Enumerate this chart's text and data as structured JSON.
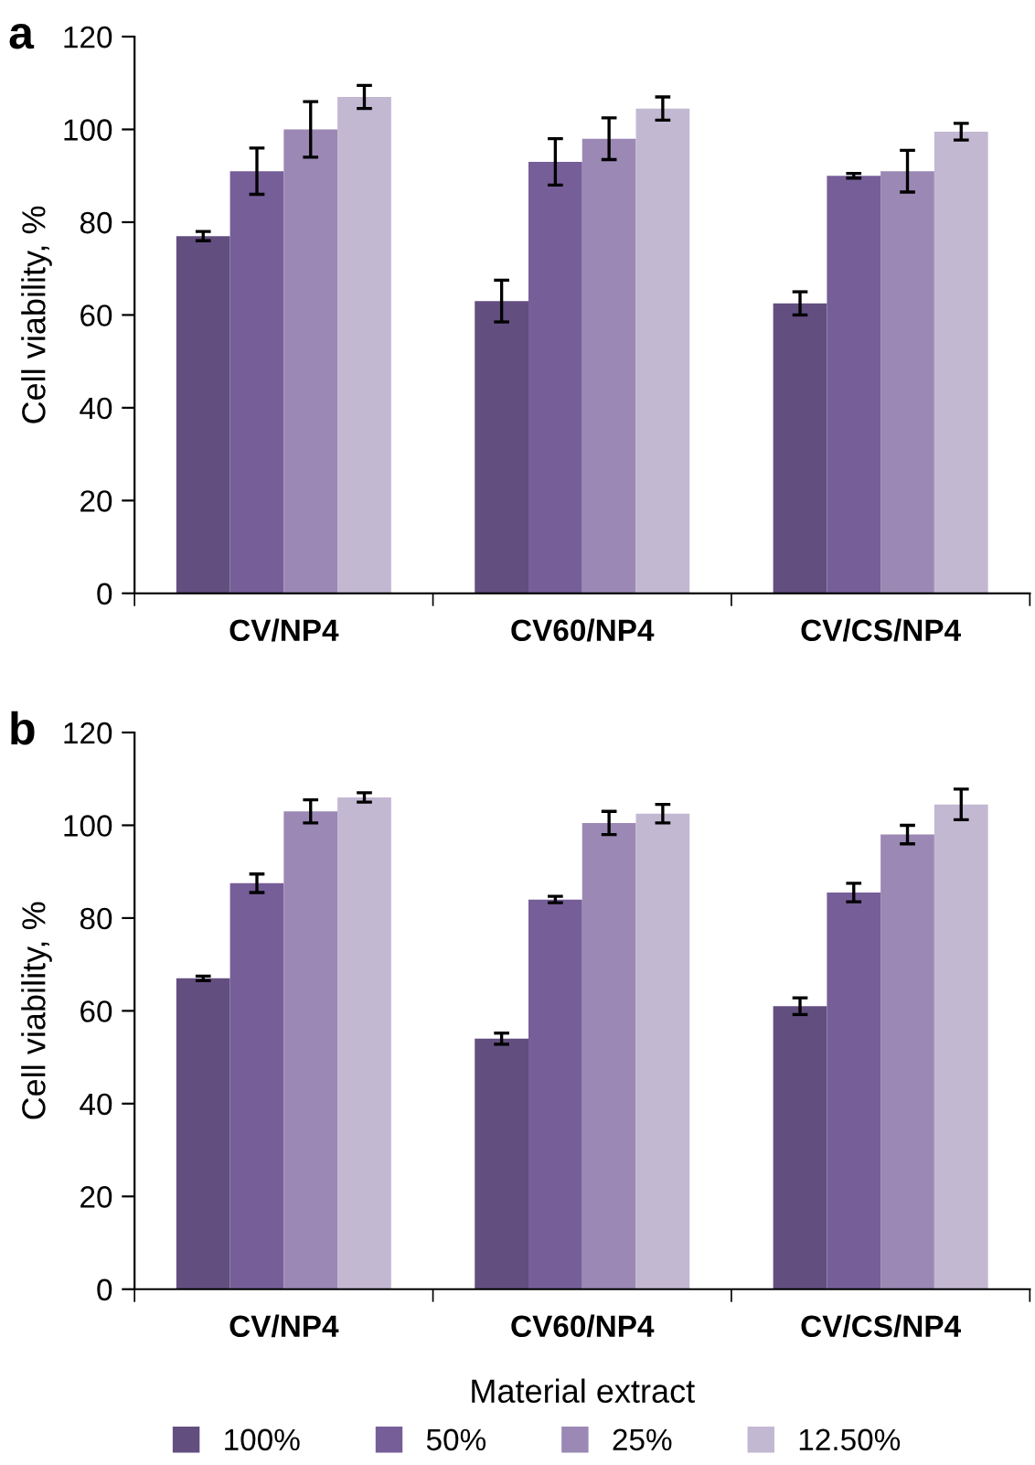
{
  "chart_data": [
    {
      "type": "bar",
      "title": "a",
      "ylabel": "Cell viability, %",
      "categories": [
        "CV/NP4",
        "CV60/NP4",
        "CV/CS/NP4"
      ],
      "ylim": [
        0,
        120
      ],
      "yticks": [
        0,
        20,
        40,
        60,
        80,
        100,
        120
      ],
      "grid": false,
      "series": [
        {
          "color": "#634e80",
          "values": [
            77,
            63,
            62.5
          ],
          "errors": [
            1,
            4.5,
            2.5
          ]
        },
        {
          "color": "#765e98",
          "values": [
            91,
            93,
            90
          ],
          "errors": [
            5,
            5,
            0.5
          ]
        },
        {
          "color": "#9b88b4",
          "values": [
            100,
            98,
            91
          ],
          "errors": [
            6,
            4.5,
            4.5
          ]
        },
        {
          "color": "#c3b8d2",
          "values": [
            107,
            104.5,
            99.5
          ],
          "errors": [
            2.5,
            2.5,
            1.8
          ]
        }
      ]
    },
    {
      "type": "bar",
      "title": "b",
      "ylabel": "Cell viability, %",
      "xlabel": "Material extract",
      "categories": [
        "CV/NP4",
        "CV60/NP4",
        "CV/CS/NP4"
      ],
      "ylim": [
        0,
        120
      ],
      "yticks": [
        0,
        20,
        40,
        60,
        80,
        100,
        120
      ],
      "grid": false,
      "legend": "bottom",
      "series": [
        {
          "name": "100%",
          "color": "#634e80",
          "values": [
            67,
            54,
            61
          ],
          "errors": [
            0.5,
            1.2,
            1.8
          ]
        },
        {
          "name": "50%",
          "color": "#765e98",
          "values": [
            87.5,
            84,
            85.5
          ],
          "errors": [
            2,
            0.7,
            2
          ]
        },
        {
          "name": "25%",
          "color": "#9b88b4",
          "values": [
            103,
            100.5,
            98
          ],
          "errors": [
            2.5,
            2.5,
            2
          ]
        },
        {
          "name": "12.50%",
          "color": "#c3b8d2",
          "values": [
            106,
            102.5,
            104.5
          ],
          "errors": [
            1,
            2,
            3.3
          ]
        }
      ]
    }
  ]
}
